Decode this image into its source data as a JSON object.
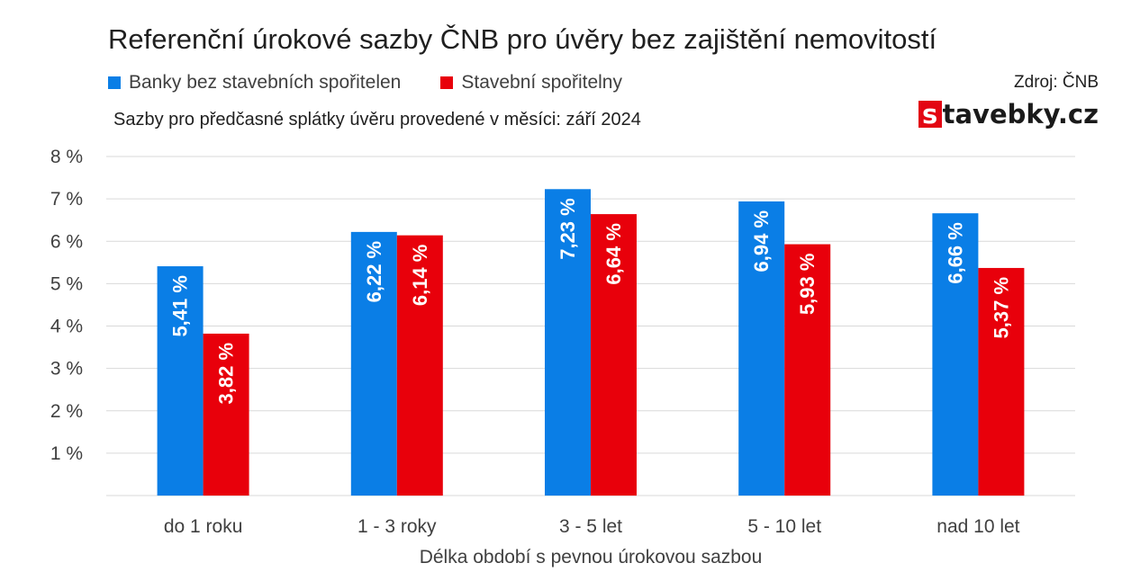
{
  "header": {
    "title": "Referenční úrokové sazby ČNB pro úvěry bez zajištění nemovitostí",
    "subtitle": "Sazby pro předčasné splátky úvěru provedené v měsíci: září 2024",
    "source": "Zdroj: ČNB",
    "brand_letter": "s",
    "brand_rest": "tavebky.cz"
  },
  "legend": [
    {
      "label": "Banky bez stavebních spořitelen",
      "color": "#0a7ee6"
    },
    {
      "label": "Stavební spořitelny",
      "color": "#e8000b"
    }
  ],
  "chart_data": {
    "type": "bar",
    "categories": [
      "do 1 roku",
      "1 - 3 roky",
      "3 - 5 let",
      "5 - 10 let",
      "nad 10 let"
    ],
    "series": [
      {
        "name": "Banky bez stavebních spořitelen",
        "values": [
          5.41,
          6.22,
          7.23,
          6.94,
          6.66
        ],
        "labels": [
          "5,41 %",
          "6,22 %",
          "7,23 %",
          "6,94 %",
          "6,66 %"
        ],
        "color": "#0a7ee6"
      },
      {
        "name": "Stavební spořitelny",
        "values": [
          3.82,
          6.14,
          6.64,
          5.93,
          5.37
        ],
        "labels": [
          "3,82 %",
          "6,14 %",
          "6,64 %",
          "5,93 %",
          "5,37 %"
        ],
        "color": "#e8000b"
      }
    ],
    "xlabel": "Délka období s pevnou úrokovou sazbou",
    "ylabel": "",
    "ylim": [
      0,
      8
    ],
    "yticks": [
      1,
      2,
      3,
      4,
      5,
      6,
      7,
      8
    ],
    "ytick_labels": [
      "1 %",
      "2 %",
      "3 %",
      "4 %",
      "5 %",
      "6 %",
      "7 %",
      "8 %"
    ],
    "grid": true,
    "legend_position": "top-left"
  }
}
